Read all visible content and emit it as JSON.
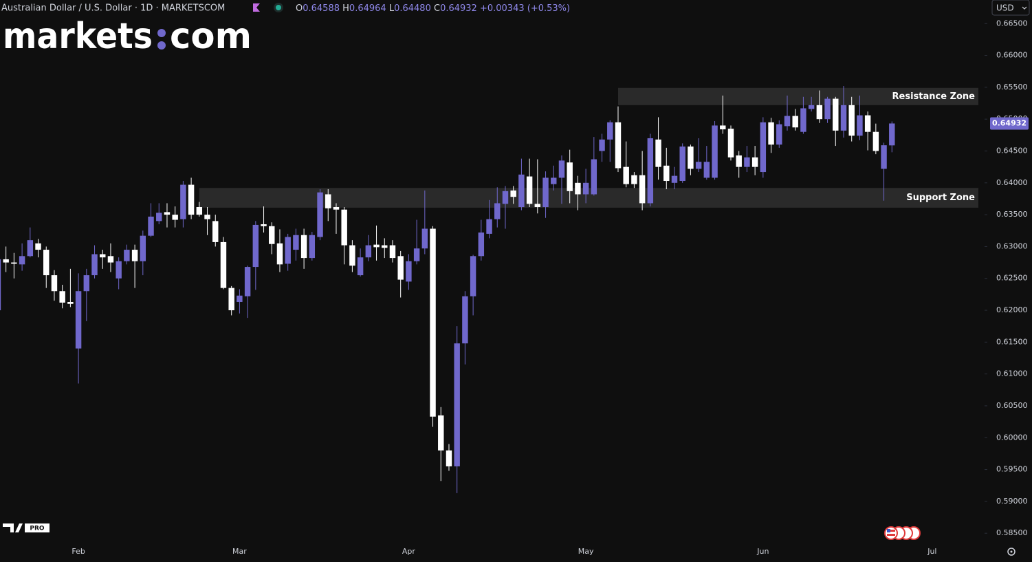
{
  "header": {
    "name": "Australian Dollar / U.S. Dollar · 1D · MARKETSCOM",
    "ohlc": [
      {
        "label": "O",
        "value": "0.64588"
      },
      {
        "label": "H",
        "value": "0.64964"
      },
      {
        "label": "L",
        "value": "0.64480"
      },
      {
        "label": "C",
        "value": "0.64932"
      }
    ],
    "change": "+0.00343 (+0.53%)",
    "currency": "USD"
  },
  "logo": {
    "left": "markets",
    "right": "com"
  },
  "badge": "PRO",
  "chart_data": {
    "type": "candlestick",
    "up_color": "#7068cc",
    "down_color": "#ffffff",
    "grid": false,
    "open": [
      0.62,
      0.628,
      0.6275,
      0.6272,
      0.6285,
      0.6305,
      0.6295,
      0.6255,
      0.623,
      0.6213,
      0.614,
      0.623,
      0.6255,
      0.6288,
      0.6285,
      0.625,
      0.6277,
      0.6295,
      0.6277,
      0.6317,
      0.634,
      0.6354,
      0.635,
      0.6343,
      0.6397,
      0.6362,
      0.635,
      0.634,
      0.6307,
      0.6235,
      0.6213,
      0.6222,
      0.6268,
      0.6335,
      0.6332,
      0.6305,
      0.6273,
      0.6295,
      0.6318,
      0.6282,
      0.6315,
      0.6382,
      0.6362,
      0.6358,
      0.6302,
      0.6255,
      0.6283,
      0.6303,
      0.6302,
      0.6302,
      0.6285,
      0.6245,
      0.6277,
      0.6297,
      0.6328,
      0.6035,
      0.598,
      0.5955,
      0.6148,
      0.6222,
      0.6285,
      0.632,
      0.6343,
      0.6367,
      0.6388,
      0.6362,
      0.641,
      0.6367,
      0.6362,
      0.6398,
      0.6408,
      0.6432,
      0.64,
      0.6382,
      0.6382,
      0.645,
      0.6468,
      0.6495,
      0.6425,
      0.6412,
      0.6412,
      0.6368,
      0.6468,
      0.6427,
      0.64,
      0.6403,
      0.6457,
      0.6422,
      0.6408,
      0.6408,
      0.649,
      0.6485,
      0.6443,
      0.6425,
      0.644,
      0.6417,
      0.6495,
      0.646,
      0.6489,
      0.6505,
      0.648,
      0.6516,
      0.6522,
      0.65,
      0.6532,
      0.6482,
      0.6522,
      0.6474,
      0.6506,
      0.648,
      0.6422,
      0.64588
    ],
    "high": [
      0.629,
      0.63,
      0.629,
      0.6305,
      0.633,
      0.6312,
      0.63,
      0.6263,
      0.624,
      0.6265,
      0.6258,
      0.6265,
      0.6302,
      0.6295,
      0.6305,
      0.6283,
      0.6303,
      0.6303,
      0.6325,
      0.6368,
      0.6368,
      0.6368,
      0.6363,
      0.6403,
      0.6408,
      0.637,
      0.6362,
      0.635,
      0.6315,
      0.6238,
      0.6233,
      0.627,
      0.634,
      0.6363,
      0.6338,
      0.6327,
      0.632,
      0.6328,
      0.6328,
      0.6323,
      0.639,
      0.639,
      0.6368,
      0.6362,
      0.631,
      0.6297,
      0.6318,
      0.6333,
      0.6313,
      0.631,
      0.6293,
      0.6288,
      0.6342,
      0.6388,
      0.6332,
      0.6048,
      0.599,
      0.6175,
      0.623,
      0.6287,
      0.6342,
      0.6373,
      0.6393,
      0.6395,
      0.6395,
      0.6438,
      0.6438,
      0.6437,
      0.6418,
      0.6427,
      0.6443,
      0.6452,
      0.6411,
      0.6422,
      0.6472,
      0.6477,
      0.6498,
      0.652,
      0.6465,
      0.6417,
      0.645,
      0.6477,
      0.6503,
      0.6455,
      0.6425,
      0.6462,
      0.646,
      0.647,
      0.6458,
      0.6497,
      0.6537,
      0.649,
      0.645,
      0.6458,
      0.6458,
      0.6503,
      0.6502,
      0.6498,
      0.6537,
      0.6516,
      0.6535,
      0.6535,
      0.6545,
      0.6535,
      0.6535,
      0.6552,
      0.6535,
      0.6537,
      0.6512,
      0.6493,
      0.6463,
      0.64964
    ],
    "low": [
      0.6195,
      0.626,
      0.625,
      0.6262,
      0.6283,
      0.6283,
      0.6235,
      0.6215,
      0.6203,
      0.6205,
      0.6085,
      0.6183,
      0.625,
      0.6265,
      0.626,
      0.6233,
      0.6272,
      0.6235,
      0.6255,
      0.6315,
      0.6335,
      0.633,
      0.633,
      0.633,
      0.6343,
      0.6347,
      0.6318,
      0.63,
      0.6233,
      0.6192,
      0.6195,
      0.6188,
      0.6232,
      0.6322,
      0.6288,
      0.626,
      0.6262,
      0.6278,
      0.6265,
      0.6278,
      0.631,
      0.634,
      0.632,
      0.6272,
      0.626,
      0.6253,
      0.6277,
      0.6278,
      0.6282,
      0.6275,
      0.622,
      0.6232,
      0.6272,
      0.6288,
      0.6017,
      0.5932,
      0.5948,
      0.5913,
      0.6115,
      0.6192,
      0.6278,
      0.6313,
      0.633,
      0.6328,
      0.6367,
      0.6357,
      0.6362,
      0.6352,
      0.6345,
      0.6388,
      0.6367,
      0.6368,
      0.6357,
      0.6368,
      0.638,
      0.6433,
      0.6433,
      0.6417,
      0.6393,
      0.6392,
      0.6357,
      0.6363,
      0.6405,
      0.639,
      0.639,
      0.64,
      0.6412,
      0.6417,
      0.6405,
      0.6405,
      0.6477,
      0.6435,
      0.6408,
      0.6417,
      0.6412,
      0.6408,
      0.6447,
      0.6455,
      0.6482,
      0.6482,
      0.6477,
      0.6512,
      0.6494,
      0.6494,
      0.6458,
      0.6471,
      0.6465,
      0.6467,
      0.6451,
      0.6445,
      0.6372,
      0.6448
    ],
    "close": [
      0.628,
      0.6275,
      0.6273,
      0.6285,
      0.631,
      0.6295,
      0.6255,
      0.623,
      0.6212,
      0.621,
      0.623,
      0.6255,
      0.6288,
      0.6283,
      0.6275,
      0.6277,
      0.6295,
      0.6277,
      0.6317,
      0.6347,
      0.6353,
      0.635,
      0.6342,
      0.6397,
      0.635,
      0.635,
      0.6343,
      0.6307,
      0.6235,
      0.62,
      0.6223,
      0.6268,
      0.6334,
      0.6332,
      0.6304,
      0.6272,
      0.6315,
      0.6318,
      0.6282,
      0.6318,
      0.6385,
      0.636,
      0.6358,
      0.6302,
      0.627,
      0.6283,
      0.6302,
      0.6299,
      0.6298,
      0.6282,
      0.6248,
      0.6277,
      0.6297,
      0.6328,
      0.6033,
      0.598,
      0.5955,
      0.6148,
      0.6222,
      0.6285,
      0.6322,
      0.6343,
      0.6368,
      0.6387,
      0.6378,
      0.6413,
      0.6367,
      0.6362,
      0.6408,
      0.6408,
      0.6435,
      0.6387,
      0.6382,
      0.64,
      0.6437,
      0.6468,
      0.6495,
      0.6423,
      0.6398,
      0.6398,
      0.6368,
      0.647,
      0.6425,
      0.6403,
      0.6411,
      0.6457,
      0.6422,
      0.6433,
      0.6433,
      0.649,
      0.6484,
      0.644,
      0.6425,
      0.644,
      0.6425,
      0.6495,
      0.646,
      0.6492,
      0.6505,
      0.6487,
      0.6517,
      0.6522,
      0.65,
      0.6532,
      0.6482,
      0.6522,
      0.6474,
      0.6506,
      0.648,
      0.645,
      0.6459,
      0.64932
    ],
    "xlim": [
      0.26,
      122.5
    ],
    "xticks": [
      {
        "value": 10,
        "label": "Feb"
      },
      {
        "value": 30,
        "label": "Mar"
      },
      {
        "value": 51,
        "label": "Apr"
      },
      {
        "value": 73,
        "label": "May"
      },
      {
        "value": 95,
        "label": "Jun"
      },
      {
        "value": 116,
        "label": "Jul"
      }
    ],
    "ylim": [
      0.5834,
      0.6687
    ],
    "yticks": [
      {
        "value": 0.665,
        "label": "0.66500"
      },
      {
        "value": 0.66,
        "label": "0.66000"
      },
      {
        "value": 0.655,
        "label": "0.65500"
      },
      {
        "value": 0.65,
        "label": "0.65000"
      },
      {
        "value": 0.645,
        "label": "0.64500"
      },
      {
        "value": 0.64,
        "label": "0.64000"
      },
      {
        "value": 0.635,
        "label": "0.63500"
      },
      {
        "value": 0.63,
        "label": "0.63000"
      },
      {
        "value": 0.625,
        "label": "0.62500"
      },
      {
        "value": 0.62,
        "label": "0.62000"
      },
      {
        "value": 0.615,
        "label": "0.61500"
      },
      {
        "value": 0.61,
        "label": "0.61000"
      },
      {
        "value": 0.605,
        "label": "0.60500"
      },
      {
        "value": 0.6,
        "label": "0.60000"
      },
      {
        "value": 0.595,
        "label": "0.59500"
      },
      {
        "value": 0.59,
        "label": "0.59000"
      },
      {
        "value": 0.585,
        "label": "0.58500"
      }
    ],
    "annotations": [
      {
        "label": "Resistance Zone",
        "low": 0.6522,
        "high": 0.6549,
        "start": 77
      },
      {
        "label": "Support Zone",
        "low": 0.6361,
        "high": 0.6392,
        "start": 25
      }
    ]
  }
}
